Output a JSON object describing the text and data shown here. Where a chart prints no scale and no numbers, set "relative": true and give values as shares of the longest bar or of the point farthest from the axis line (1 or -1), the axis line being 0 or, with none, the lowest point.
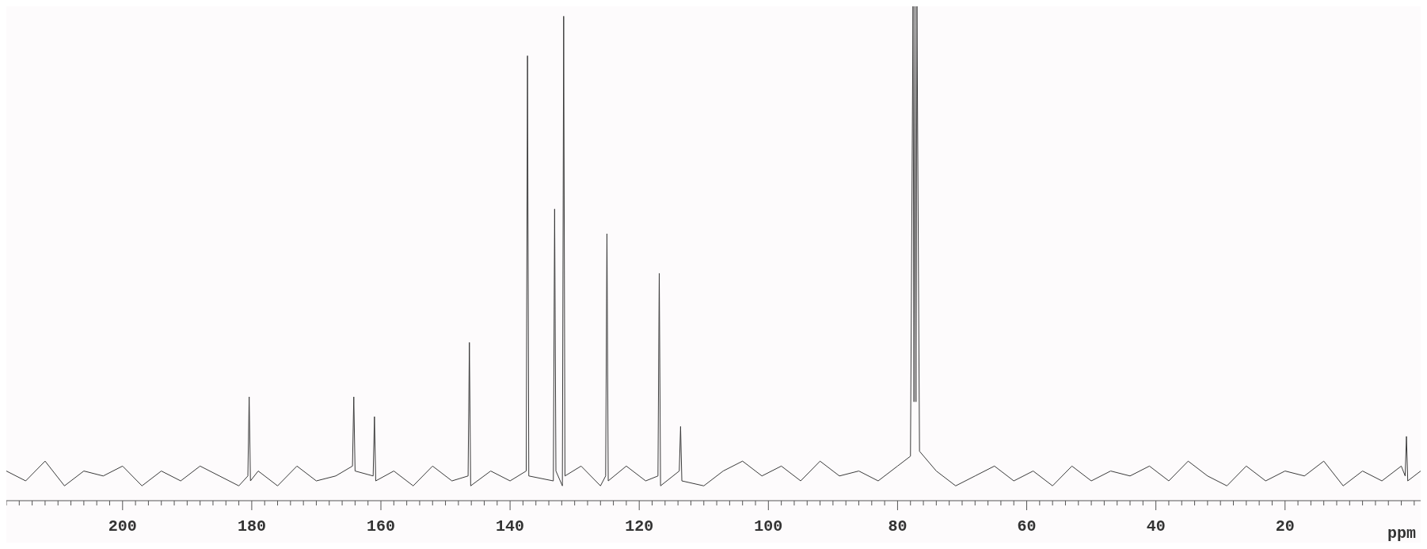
{
  "chart_data": {
    "type": "line",
    "relative": true,
    "xlabel": "ppm",
    "marker": "none",
    "line_style": "solid",
    "xlim": [
      218,
      -1
    ],
    "xticks": [
      {
        "value": 218,
        "label": null
      },
      {
        "value": 216,
        "label": null
      },
      {
        "value": 214,
        "label": null
      },
      {
        "value": 212,
        "label": null
      },
      {
        "value": 210,
        "label": null
      },
      {
        "value": 208,
        "label": null
      },
      {
        "value": 206,
        "label": null
      },
      {
        "value": 204,
        "label": null
      },
      {
        "value": 202,
        "label": null
      },
      200,
      {
        "value": 198,
        "label": null
      },
      {
        "value": 196,
        "label": null
      },
      {
        "value": 194,
        "label": null
      },
      {
        "value": 192,
        "label": null
      },
      {
        "value": 190,
        "label": null
      },
      {
        "value": 188,
        "label": null
      },
      {
        "value": 186,
        "label": null
      },
      {
        "value": 184,
        "label": null
      },
      {
        "value": 182,
        "label": null
      },
      180,
      {
        "value": 178,
        "label": null
      },
      {
        "value": 176,
        "label": null
      },
      {
        "value": 174,
        "label": null
      },
      {
        "value": 172,
        "label": null
      },
      {
        "value": 170,
        "label": null
      },
      {
        "value": 168,
        "label": null
      },
      {
        "value": 166,
        "label": null
      },
      {
        "value": 164,
        "label": null
      },
      {
        "value": 162,
        "label": null
      },
      160,
      {
        "value": 158,
        "label": null
      },
      {
        "value": 156,
        "label": null
      },
      {
        "value": 154,
        "label": null
      },
      {
        "value": 152,
        "label": null
      },
      {
        "value": 150,
        "label": null
      },
      {
        "value": 148,
        "label": null
      },
      {
        "value": 146,
        "label": null
      },
      {
        "value": 144,
        "label": null
      },
      {
        "value": 142,
        "label": null
      },
      140,
      {
        "value": 138,
        "label": null
      },
      {
        "value": 136,
        "label": null
      },
      {
        "value": 134,
        "label": null
      },
      {
        "value": 132,
        "label": null
      },
      {
        "value": 130,
        "label": null
      },
      {
        "value": 128,
        "label": null
      },
      {
        "value": 126,
        "label": null
      },
      {
        "value": 124,
        "label": null
      },
      {
        "value": 122,
        "label": null
      },
      120,
      {
        "value": 118,
        "label": null
      },
      {
        "value": 116,
        "label": null
      },
      {
        "value": 114,
        "label": null
      },
      {
        "value": 112,
        "label": null
      },
      {
        "value": 110,
        "label": null
      },
      {
        "value": 108,
        "label": null
      },
      {
        "value": 106,
        "label": null
      },
      {
        "value": 104,
        "label": null
      },
      {
        "value": 102,
        "label": null
      },
      100,
      {
        "value": 98,
        "label": null
      },
      {
        "value": 96,
        "label": null
      },
      {
        "value": 94,
        "label": null
      },
      {
        "value": 92,
        "label": null
      },
      {
        "value": 90,
        "label": null
      },
      {
        "value": 88,
        "label": null
      },
      {
        "value": 86,
        "label": null
      },
      {
        "value": 84,
        "label": null
      },
      {
        "value": 82,
        "label": null
      },
      80,
      {
        "value": 78,
        "label": null
      },
      {
        "value": 76,
        "label": null
      },
      {
        "value": 74,
        "label": null
      },
      {
        "value": 72,
        "label": null
      },
      {
        "value": 70,
        "label": null
      },
      {
        "value": 68,
        "label": null
      },
      {
        "value": 66,
        "label": null
      },
      {
        "value": 64,
        "label": null
      },
      {
        "value": 62,
        "label": null
      },
      60,
      {
        "value": 58,
        "label": null
      },
      {
        "value": 56,
        "label": null
      },
      {
        "value": 54,
        "label": null
      },
      {
        "value": 52,
        "label": null
      },
      {
        "value": 50,
        "label": null
      },
      {
        "value": 48,
        "label": null
      },
      {
        "value": 46,
        "label": null
      },
      {
        "value": 44,
        "label": null
      },
      {
        "value": 42,
        "label": null
      },
      40,
      {
        "value": 38,
        "label": null
      },
      {
        "value": 36,
        "label": null
      },
      {
        "value": 34,
        "label": null
      },
      {
        "value": 32,
        "label": null
      },
      {
        "value": 30,
        "label": null
      },
      {
        "value": 28,
        "label": null
      },
      {
        "value": 26,
        "label": null
      },
      {
        "value": 24,
        "label": null
      },
      {
        "value": 22,
        "label": null
      },
      20,
      {
        "value": 18,
        "label": null
      },
      {
        "value": 16,
        "label": null
      },
      {
        "value": 14,
        "label": null
      },
      {
        "value": 12,
        "label": null
      },
      {
        "value": 10,
        "label": null
      },
      {
        "value": 8,
        "label": null
      },
      {
        "value": 6,
        "label": null
      },
      {
        "value": 4,
        "label": null
      },
      {
        "value": 2,
        "label": null
      },
      {
        "value": 0,
        "label": null
      }
    ],
    "x": [
      218,
      215,
      212,
      209,
      206,
      203,
      200,
      197,
      194,
      191,
      188,
      185,
      182,
      180.6,
      180.4,
      180.2,
      179,
      176,
      173,
      170,
      167,
      164.4,
      164.2,
      164.0,
      161.2,
      161.0,
      160.8,
      158,
      155,
      152,
      149,
      146.5,
      146.3,
      146.1,
      143,
      140,
      137.5,
      137.3,
      137.1,
      133.3,
      133.1,
      132.9,
      131.9,
      131.7,
      131.5,
      129,
      126,
      125.2,
      125.0,
      124.8,
      122,
      119,
      117.1,
      116.9,
      116.7,
      113.8,
      113.6,
      113.4,
      110,
      107,
      104,
      101,
      98,
      95,
      92,
      89,
      86,
      83,
      80,
      78.0,
      77.6,
      77.45,
      77.3,
      77.15,
      77.0,
      76.6,
      74,
      71,
      68,
      65,
      62,
      59,
      56,
      53,
      50,
      47,
      44,
      41,
      38,
      35,
      32,
      29,
      26,
      23,
      20,
      17,
      14,
      11,
      8,
      5,
      2,
      1.4,
      1.2,
      1.0,
      -1
    ],
    "series": [
      {
        "color": "#3a3a3a",
        "values": [
          0.06,
          0.04,
          0.08,
          0.03,
          0.06,
          0.05,
          0.07,
          0.03,
          0.06,
          0.04,
          0.07,
          0.05,
          0.03,
          0.05,
          0.21,
          0.04,
          0.06,
          0.03,
          0.07,
          0.04,
          0.05,
          0.07,
          0.21,
          0.06,
          0.05,
          0.17,
          0.04,
          0.06,
          0.03,
          0.07,
          0.04,
          0.05,
          0.32,
          0.03,
          0.06,
          0.04,
          0.06,
          0.9,
          0.05,
          0.04,
          0.59,
          0.06,
          0.03,
          0.98,
          0.05,
          0.07,
          0.03,
          0.05,
          0.54,
          0.04,
          0.07,
          0.04,
          0.05,
          0.46,
          0.03,
          0.06,
          0.15,
          0.04,
          0.03,
          0.06,
          0.08,
          0.05,
          0.07,
          0.04,
          0.08,
          0.05,
          0.06,
          0.04,
          0.07,
          0.09,
          1,
          0.2,
          1,
          0.2,
          1,
          0.1,
          0.06,
          0.03,
          0.05,
          0.07,
          0.04,
          0.06,
          0.03,
          0.07,
          0.04,
          0.06,
          0.05,
          0.07,
          0.04,
          0.08,
          0.05,
          0.03,
          0.07,
          0.04,
          0.06,
          0.05,
          0.08,
          0.03,
          0.06,
          0.04,
          0.07,
          0.05,
          0.13,
          0.04,
          0.06
        ]
      }
    ]
  }
}
